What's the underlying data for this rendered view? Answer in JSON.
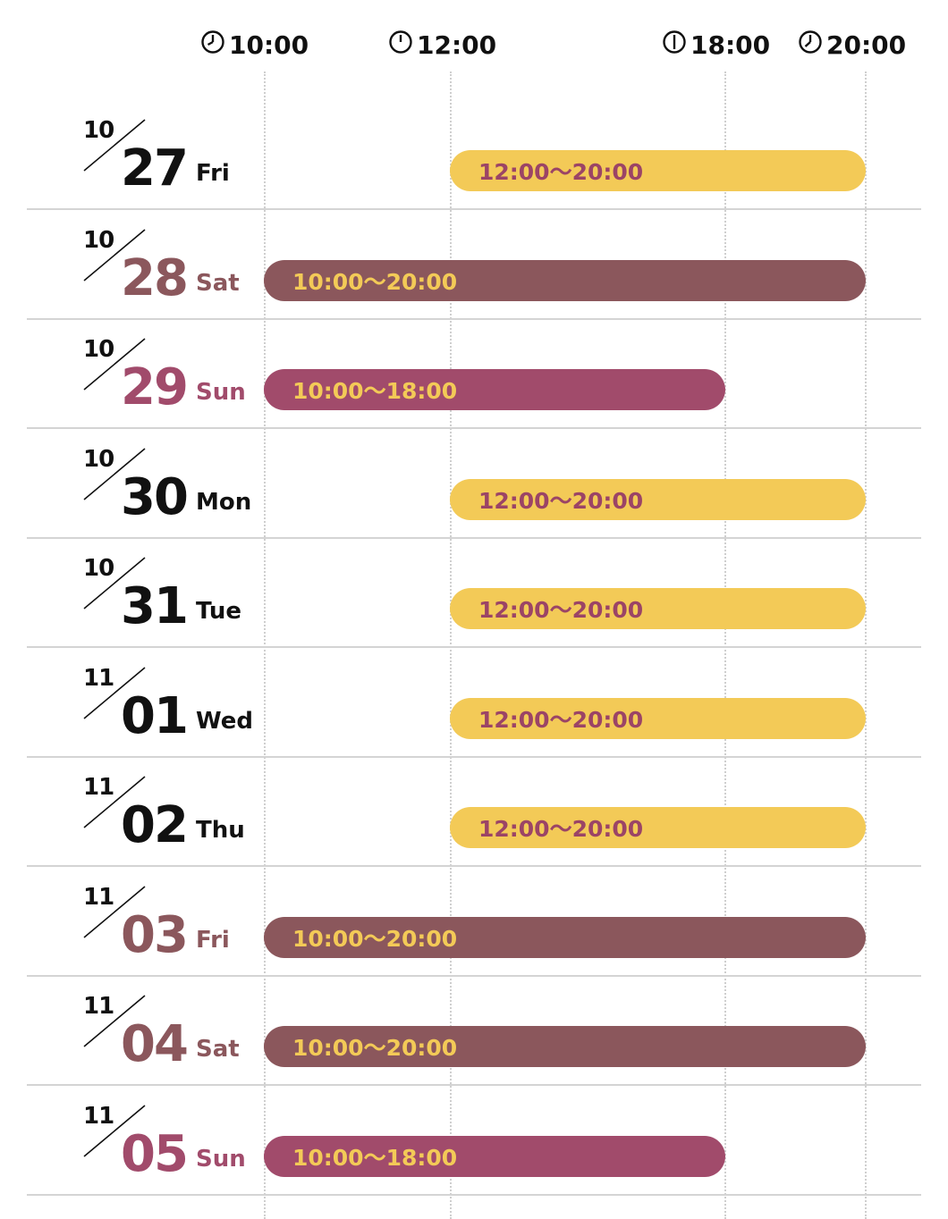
{
  "time_headers": [
    {
      "label": "10:00",
      "icon": "clock-icon"
    },
    {
      "label": "12:00",
      "icon": "clock-icon"
    },
    {
      "label": "18:00",
      "icon": "clock-icon"
    },
    {
      "label": "20:00",
      "icon": "clock-icon"
    }
  ],
  "colors": {
    "weekday": "#111111",
    "saturday": "#8b575c",
    "sunday": "#a14b6b",
    "bar_yellow": "#f3ca57",
    "bar_brown": "#8b575c",
    "bar_magenta": "#a14b6b"
  },
  "rows": [
    {
      "month": "10",
      "day": "27",
      "dow": "Fri",
      "hours": "12:00〜20:00",
      "start": "12:00",
      "end": "20:00",
      "style": "yellow",
      "date_color": "black"
    },
    {
      "month": "10",
      "day": "28",
      "dow": "Sat",
      "hours": "10:00〜20:00",
      "start": "10:00",
      "end": "20:00",
      "style": "brown",
      "date_color": "brown"
    },
    {
      "month": "10",
      "day": "29",
      "dow": "Sun",
      "hours": "10:00〜18:00",
      "start": "10:00",
      "end": "18:00",
      "style": "magenta",
      "date_color": "magenta"
    },
    {
      "month": "10",
      "day": "30",
      "dow": "Mon",
      "hours": "12:00〜20:00",
      "start": "12:00",
      "end": "20:00",
      "style": "yellow",
      "date_color": "black"
    },
    {
      "month": "10",
      "day": "31",
      "dow": "Tue",
      "hours": "12:00〜20:00",
      "start": "12:00",
      "end": "20:00",
      "style": "yellow",
      "date_color": "black"
    },
    {
      "month": "11",
      "day": "01",
      "dow": "Wed",
      "hours": "12:00〜20:00",
      "start": "12:00",
      "end": "20:00",
      "style": "yellow",
      "date_color": "black"
    },
    {
      "month": "11",
      "day": "02",
      "dow": "Thu",
      "hours": "12:00〜20:00",
      "start": "12:00",
      "end": "20:00",
      "style": "yellow",
      "date_color": "black"
    },
    {
      "month": "11",
      "day": "03",
      "dow": "Fri",
      "hours": "10:00〜20:00",
      "start": "10:00",
      "end": "20:00",
      "style": "brown",
      "date_color": "brown"
    },
    {
      "month": "11",
      "day": "04",
      "dow": "Sat",
      "hours": "10:00〜20:00",
      "start": "10:00",
      "end": "20:00",
      "style": "brown",
      "date_color": "brown"
    },
    {
      "month": "11",
      "day": "05",
      "dow": "Sun",
      "hours": "10:00〜18:00",
      "start": "10:00",
      "end": "18:00",
      "style": "magenta",
      "date_color": "magenta"
    }
  ]
}
